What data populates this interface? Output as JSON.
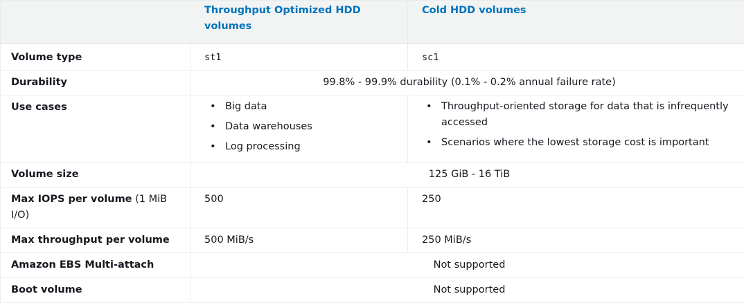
{
  "header": {
    "col_feature": "",
    "col_st1": "Throughput Optimized HDD volumes",
    "col_sc1": "Cold HDD volumes"
  },
  "rows": {
    "volume_type": {
      "label": "Volume type",
      "st1": "st1",
      "sc1": "sc1"
    },
    "durability": {
      "label": "Durability",
      "value": "99.8% - 99.9% durability (0.1% - 0.2% annual failure rate)"
    },
    "use_cases": {
      "label": "Use cases",
      "st1": [
        "Big data",
        "Data warehouses",
        "Log processing"
      ],
      "sc1": [
        "Throughput-oriented storage for data that is infrequently accessed",
        "Scenarios where the lowest storage cost is important"
      ]
    },
    "volume_size": {
      "label": "Volume size",
      "value": "125 GiB - 16 TiB"
    },
    "max_iops": {
      "label": "Max IOPS per volume",
      "label_suffix": " (1 MiB I/O)",
      "st1": "500",
      "sc1": "250"
    },
    "max_throughput": {
      "label": "Max throughput per volume",
      "st1": "500 MiB/s",
      "sc1": "250 MiB/s"
    },
    "multi_attach": {
      "label": "Amazon EBS Multi-attach",
      "value": "Not supported"
    },
    "boot_volume": {
      "label": "Boot volume",
      "value": "Not supported"
    }
  },
  "bullet_glyph": "•"
}
